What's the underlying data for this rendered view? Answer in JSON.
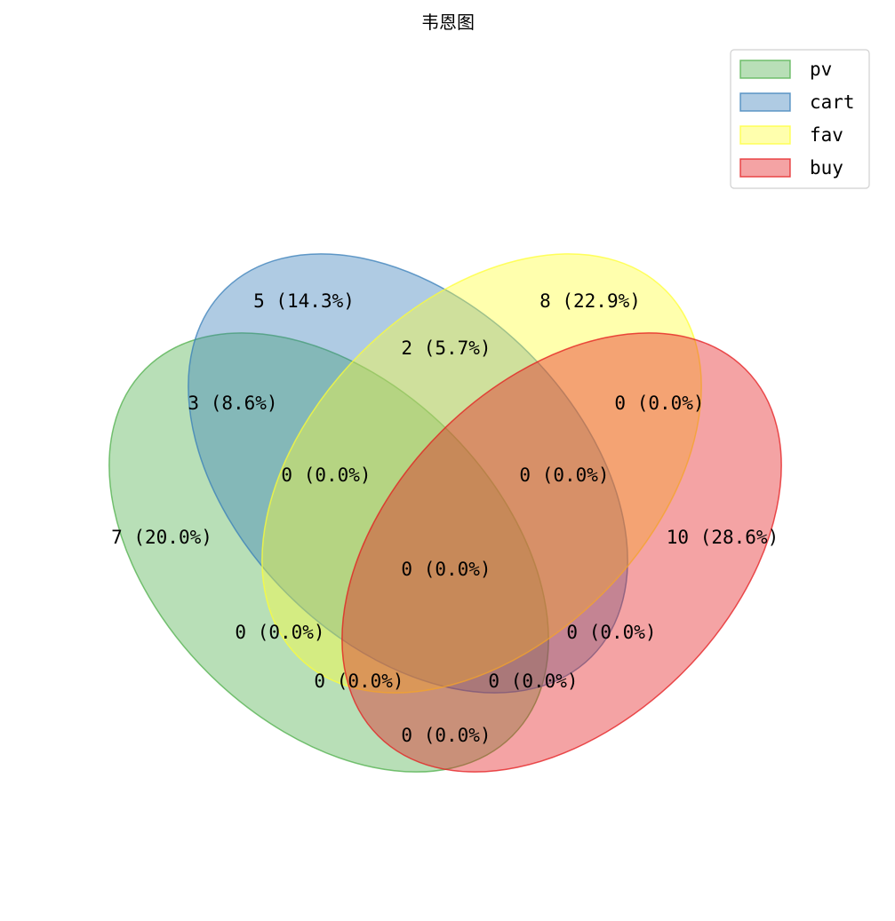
{
  "chart_data": {
    "type": "venn",
    "title": "韦恩图",
    "legend_position": "top-right",
    "grid": false,
    "sets": [
      {
        "name": "pv",
        "color": "#4daf4a"
      },
      {
        "name": "cart",
        "color": "#377eb8"
      },
      {
        "name": "fav",
        "color": "#ffff33"
      },
      {
        "name": "buy",
        "color": "#e41a1c"
      }
    ],
    "regions": [
      {
        "sets": [
          "cart"
        ],
        "label": "5 (14.3%)",
        "count": 5,
        "percent": 14.3
      },
      {
        "sets": [
          "fav"
        ],
        "label": "8 (22.9%)",
        "count": 8,
        "percent": 22.9
      },
      {
        "sets": [
          "cart",
          "fav"
        ],
        "label": "2 (5.7%)",
        "count": 2,
        "percent": 5.7
      },
      {
        "sets": [
          "pv",
          "cart"
        ],
        "label": "3 (8.6%)",
        "count": 3,
        "percent": 8.6
      },
      {
        "sets": [
          "fav",
          "buy"
        ],
        "label": "0 (0.0%)",
        "count": 0,
        "percent": 0.0
      },
      {
        "sets": [
          "pv",
          "cart",
          "fav"
        ],
        "label": "0 (0.0%)",
        "count": 0,
        "percent": 0.0
      },
      {
        "sets": [
          "cart",
          "fav",
          "buy"
        ],
        "label": "0 (0.0%)",
        "count": 0,
        "percent": 0.0
      },
      {
        "sets": [
          "pv"
        ],
        "label": "7 (20.0%)",
        "count": 7,
        "percent": 20.0
      },
      {
        "sets": [
          "buy"
        ],
        "label": "10 (28.6%)",
        "count": 10,
        "percent": 28.6
      },
      {
        "sets": [
          "pv",
          "cart",
          "fav",
          "buy"
        ],
        "label": "0 (0.0%)",
        "count": 0,
        "percent": 0.0
      },
      {
        "sets": [
          "pv",
          "fav"
        ],
        "label": "0 (0.0%)",
        "count": 0,
        "percent": 0.0
      },
      {
        "sets": [
          "cart",
          "buy"
        ],
        "label": "0 (0.0%)",
        "count": 0,
        "percent": 0.0
      },
      {
        "sets": [
          "pv",
          "fav",
          "buy"
        ],
        "label": "0 (0.0%)",
        "count": 0,
        "percent": 0.0
      },
      {
        "sets": [
          "pv",
          "cart",
          "buy"
        ],
        "label": "0 (0.0%)",
        "count": 0,
        "percent": 0.0
      },
      {
        "sets": [
          "pv",
          "buy"
        ],
        "label": "0 (0.0%)",
        "count": 0,
        "percent": 0.0
      }
    ]
  }
}
